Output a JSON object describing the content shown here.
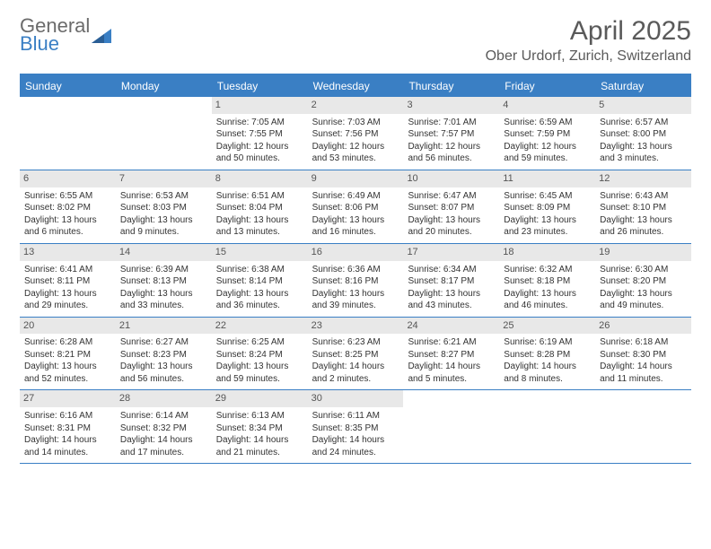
{
  "logo": {
    "line1": "General",
    "line2": "Blue"
  },
  "title": "April 2025",
  "subtitle": "Ober Urdorf, Zurich, Switzerland",
  "colors": {
    "accent": "#3a7fc4",
    "daynum_bg": "#e8e8e8",
    "text": "#333333",
    "title_text": "#5a5a5a",
    "background": "#ffffff"
  },
  "day_names": [
    "Sunday",
    "Monday",
    "Tuesday",
    "Wednesday",
    "Thursday",
    "Friday",
    "Saturday"
  ],
  "weeks": [
    [
      null,
      null,
      {
        "n": "1",
        "sr": "Sunrise: 7:05 AM",
        "ss": "Sunset: 7:55 PM",
        "dl": "Daylight: 12 hours and 50 minutes."
      },
      {
        "n": "2",
        "sr": "Sunrise: 7:03 AM",
        "ss": "Sunset: 7:56 PM",
        "dl": "Daylight: 12 hours and 53 minutes."
      },
      {
        "n": "3",
        "sr": "Sunrise: 7:01 AM",
        "ss": "Sunset: 7:57 PM",
        "dl": "Daylight: 12 hours and 56 minutes."
      },
      {
        "n": "4",
        "sr": "Sunrise: 6:59 AM",
        "ss": "Sunset: 7:59 PM",
        "dl": "Daylight: 12 hours and 59 minutes."
      },
      {
        "n": "5",
        "sr": "Sunrise: 6:57 AM",
        "ss": "Sunset: 8:00 PM",
        "dl": "Daylight: 13 hours and 3 minutes."
      }
    ],
    [
      {
        "n": "6",
        "sr": "Sunrise: 6:55 AM",
        "ss": "Sunset: 8:02 PM",
        "dl": "Daylight: 13 hours and 6 minutes."
      },
      {
        "n": "7",
        "sr": "Sunrise: 6:53 AM",
        "ss": "Sunset: 8:03 PM",
        "dl": "Daylight: 13 hours and 9 minutes."
      },
      {
        "n": "8",
        "sr": "Sunrise: 6:51 AM",
        "ss": "Sunset: 8:04 PM",
        "dl": "Daylight: 13 hours and 13 minutes."
      },
      {
        "n": "9",
        "sr": "Sunrise: 6:49 AM",
        "ss": "Sunset: 8:06 PM",
        "dl": "Daylight: 13 hours and 16 minutes."
      },
      {
        "n": "10",
        "sr": "Sunrise: 6:47 AM",
        "ss": "Sunset: 8:07 PM",
        "dl": "Daylight: 13 hours and 20 minutes."
      },
      {
        "n": "11",
        "sr": "Sunrise: 6:45 AM",
        "ss": "Sunset: 8:09 PM",
        "dl": "Daylight: 13 hours and 23 minutes."
      },
      {
        "n": "12",
        "sr": "Sunrise: 6:43 AM",
        "ss": "Sunset: 8:10 PM",
        "dl": "Daylight: 13 hours and 26 minutes."
      }
    ],
    [
      {
        "n": "13",
        "sr": "Sunrise: 6:41 AM",
        "ss": "Sunset: 8:11 PM",
        "dl": "Daylight: 13 hours and 29 minutes."
      },
      {
        "n": "14",
        "sr": "Sunrise: 6:39 AM",
        "ss": "Sunset: 8:13 PM",
        "dl": "Daylight: 13 hours and 33 minutes."
      },
      {
        "n": "15",
        "sr": "Sunrise: 6:38 AM",
        "ss": "Sunset: 8:14 PM",
        "dl": "Daylight: 13 hours and 36 minutes."
      },
      {
        "n": "16",
        "sr": "Sunrise: 6:36 AM",
        "ss": "Sunset: 8:16 PM",
        "dl": "Daylight: 13 hours and 39 minutes."
      },
      {
        "n": "17",
        "sr": "Sunrise: 6:34 AM",
        "ss": "Sunset: 8:17 PM",
        "dl": "Daylight: 13 hours and 43 minutes."
      },
      {
        "n": "18",
        "sr": "Sunrise: 6:32 AM",
        "ss": "Sunset: 8:18 PM",
        "dl": "Daylight: 13 hours and 46 minutes."
      },
      {
        "n": "19",
        "sr": "Sunrise: 6:30 AM",
        "ss": "Sunset: 8:20 PM",
        "dl": "Daylight: 13 hours and 49 minutes."
      }
    ],
    [
      {
        "n": "20",
        "sr": "Sunrise: 6:28 AM",
        "ss": "Sunset: 8:21 PM",
        "dl": "Daylight: 13 hours and 52 minutes."
      },
      {
        "n": "21",
        "sr": "Sunrise: 6:27 AM",
        "ss": "Sunset: 8:23 PM",
        "dl": "Daylight: 13 hours and 56 minutes."
      },
      {
        "n": "22",
        "sr": "Sunrise: 6:25 AM",
        "ss": "Sunset: 8:24 PM",
        "dl": "Daylight: 13 hours and 59 minutes."
      },
      {
        "n": "23",
        "sr": "Sunrise: 6:23 AM",
        "ss": "Sunset: 8:25 PM",
        "dl": "Daylight: 14 hours and 2 minutes."
      },
      {
        "n": "24",
        "sr": "Sunrise: 6:21 AM",
        "ss": "Sunset: 8:27 PM",
        "dl": "Daylight: 14 hours and 5 minutes."
      },
      {
        "n": "25",
        "sr": "Sunrise: 6:19 AM",
        "ss": "Sunset: 8:28 PM",
        "dl": "Daylight: 14 hours and 8 minutes."
      },
      {
        "n": "26",
        "sr": "Sunrise: 6:18 AM",
        "ss": "Sunset: 8:30 PM",
        "dl": "Daylight: 14 hours and 11 minutes."
      }
    ],
    [
      {
        "n": "27",
        "sr": "Sunrise: 6:16 AM",
        "ss": "Sunset: 8:31 PM",
        "dl": "Daylight: 14 hours and 14 minutes."
      },
      {
        "n": "28",
        "sr": "Sunrise: 6:14 AM",
        "ss": "Sunset: 8:32 PM",
        "dl": "Daylight: 14 hours and 17 minutes."
      },
      {
        "n": "29",
        "sr": "Sunrise: 6:13 AM",
        "ss": "Sunset: 8:34 PM",
        "dl": "Daylight: 14 hours and 21 minutes."
      },
      {
        "n": "30",
        "sr": "Sunrise: 6:11 AM",
        "ss": "Sunset: 8:35 PM",
        "dl": "Daylight: 14 hours and 24 minutes."
      },
      null,
      null,
      null
    ]
  ]
}
